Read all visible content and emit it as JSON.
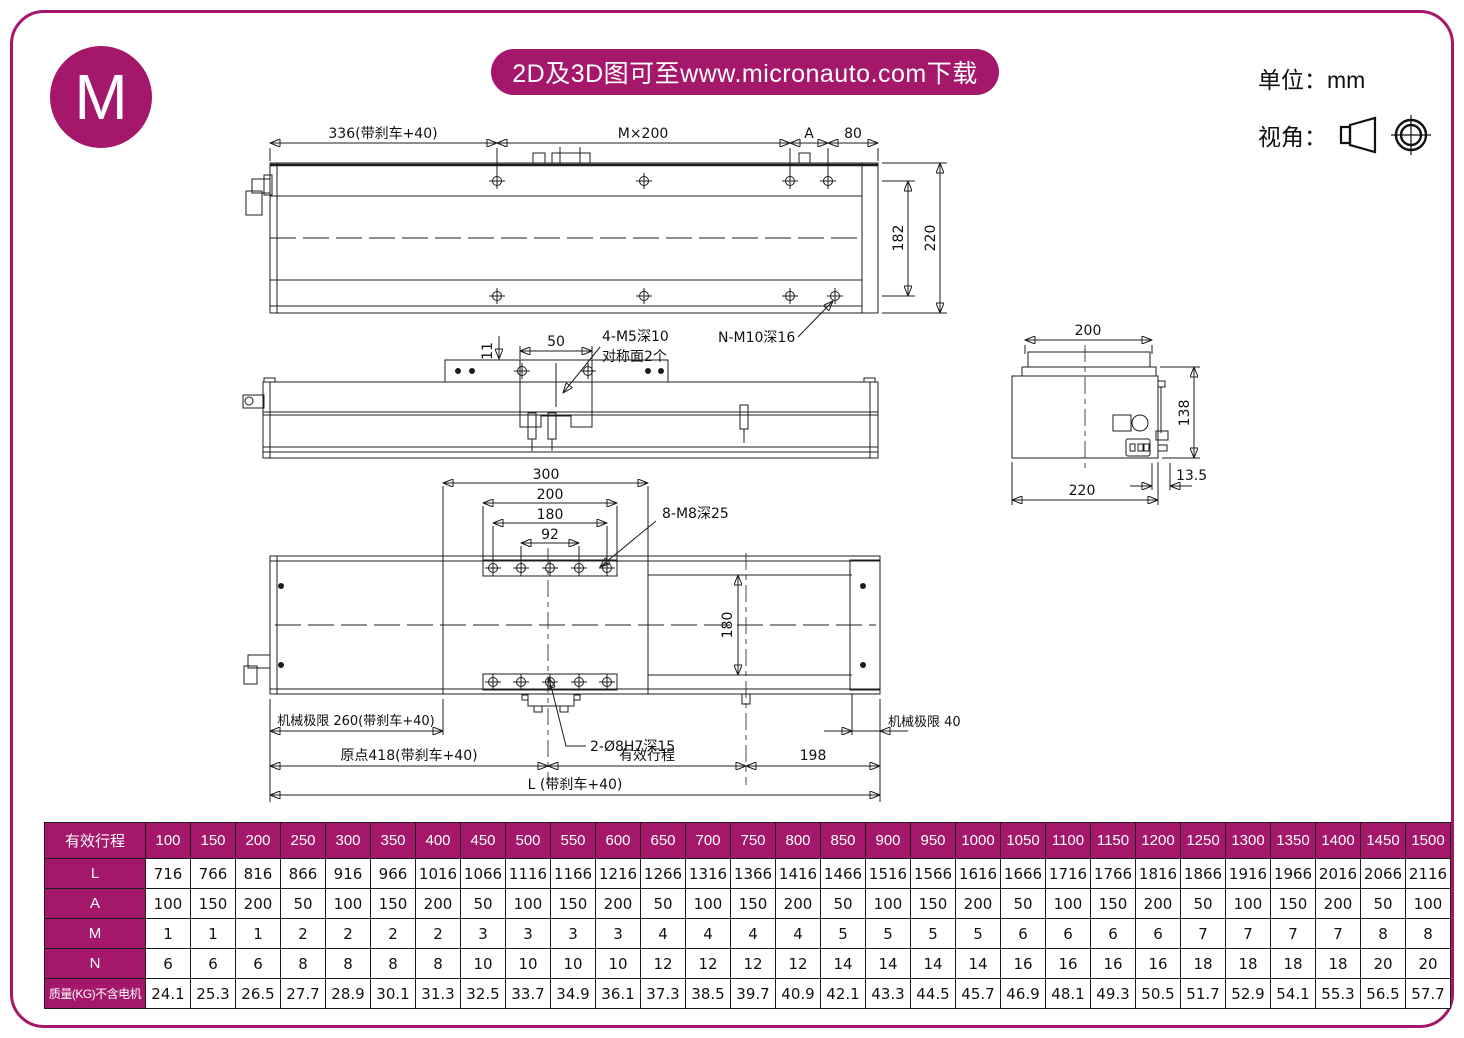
{
  "colors": {
    "accent": "#A5176A"
  },
  "header": {
    "badge": "M",
    "banner": "2D及3D图可至www.micronauto.com下载",
    "units": "单位：mm",
    "view_angle": "视角："
  },
  "drawing": {
    "top_view": {
      "dim_brake": "336(带刹车+40)",
      "dim_pitch": "M×200",
      "dim_a": "A",
      "dim_80": "80",
      "dim_182": "182",
      "dim_220": "220",
      "label_n_m10": "N-M10深16"
    },
    "side_view": {
      "dim_11": "11",
      "dim_50": "50",
      "label_m5": "4-M5深10",
      "label_m5b": "对称面2个"
    },
    "end_view": {
      "dim_200": "200",
      "dim_138": "138",
      "dim_135": "13.5",
      "dim_220": "220"
    },
    "bottom_view": {
      "dim_300": "300",
      "dim_200": "200",
      "dim_180": "180",
      "dim_92": "92",
      "label_m8": "8-M8深25",
      "dim_180v": "180",
      "label_pin": "2-Ø8H7深15",
      "limit_left": "机械极限 260(带刹车+40)",
      "limit_right": "机械极限 40",
      "origin": "原点418(带刹车+40)",
      "stroke": "有效行程",
      "dim_198": "198",
      "total": "L (带刹车+40)"
    }
  },
  "table": {
    "header_label": "有效行程",
    "header_values": [
      "100",
      "150",
      "200",
      "250",
      "300",
      "350",
      "400",
      "450",
      "500",
      "550",
      "600",
      "650",
      "700",
      "750",
      "800",
      "850",
      "900",
      "950",
      "1000",
      "1050",
      "1100",
      "1150",
      "1200",
      "1250",
      "1300",
      "1350",
      "1400",
      "1450",
      "1500"
    ],
    "rows": [
      {
        "label": "L",
        "values": [
          "716",
          "766",
          "816",
          "866",
          "916",
          "966",
          "1016",
          "1066",
          "1116",
          "1166",
          "1216",
          "1266",
          "1316",
          "1366",
          "1416",
          "1466",
          "1516",
          "1566",
          "1616",
          "1666",
          "1716",
          "1766",
          "1816",
          "1866",
          "1916",
          "1966",
          "2016",
          "2066",
          "2116"
        ]
      },
      {
        "label": "A",
        "values": [
          "100",
          "150",
          "200",
          "50",
          "100",
          "150",
          "200",
          "50",
          "100",
          "150",
          "200",
          "50",
          "100",
          "150",
          "200",
          "50",
          "100",
          "150",
          "200",
          "50",
          "100",
          "150",
          "200",
          "50",
          "100",
          "150",
          "200",
          "50",
          "100"
        ]
      },
      {
        "label": "M",
        "values": [
          "1",
          "1",
          "1",
          "2",
          "2",
          "2",
          "2",
          "3",
          "3",
          "3",
          "3",
          "4",
          "4",
          "4",
          "4",
          "5",
          "5",
          "5",
          "5",
          "6",
          "6",
          "6",
          "6",
          "7",
          "7",
          "7",
          "7",
          "8",
          "8"
        ]
      },
      {
        "label": "N",
        "values": [
          "6",
          "6",
          "6",
          "8",
          "8",
          "8",
          "8",
          "10",
          "10",
          "10",
          "10",
          "12",
          "12",
          "12",
          "12",
          "14",
          "14",
          "14",
          "14",
          "16",
          "16",
          "16",
          "16",
          "18",
          "18",
          "18",
          "18",
          "20",
          "20"
        ]
      },
      {
        "label": "质量(KG)不含电机",
        "small": true,
        "values": [
          "24.1",
          "25.3",
          "26.5",
          "27.7",
          "28.9",
          "30.1",
          "31.3",
          "32.5",
          "33.7",
          "34.9",
          "36.1",
          "37.3",
          "38.5",
          "39.7",
          "40.9",
          "42.1",
          "43.3",
          "44.5",
          "45.7",
          "46.9",
          "48.1",
          "49.3",
          "50.5",
          "51.7",
          "52.9",
          "54.1",
          "55.3",
          "56.5",
          "57.7"
        ]
      }
    ]
  }
}
